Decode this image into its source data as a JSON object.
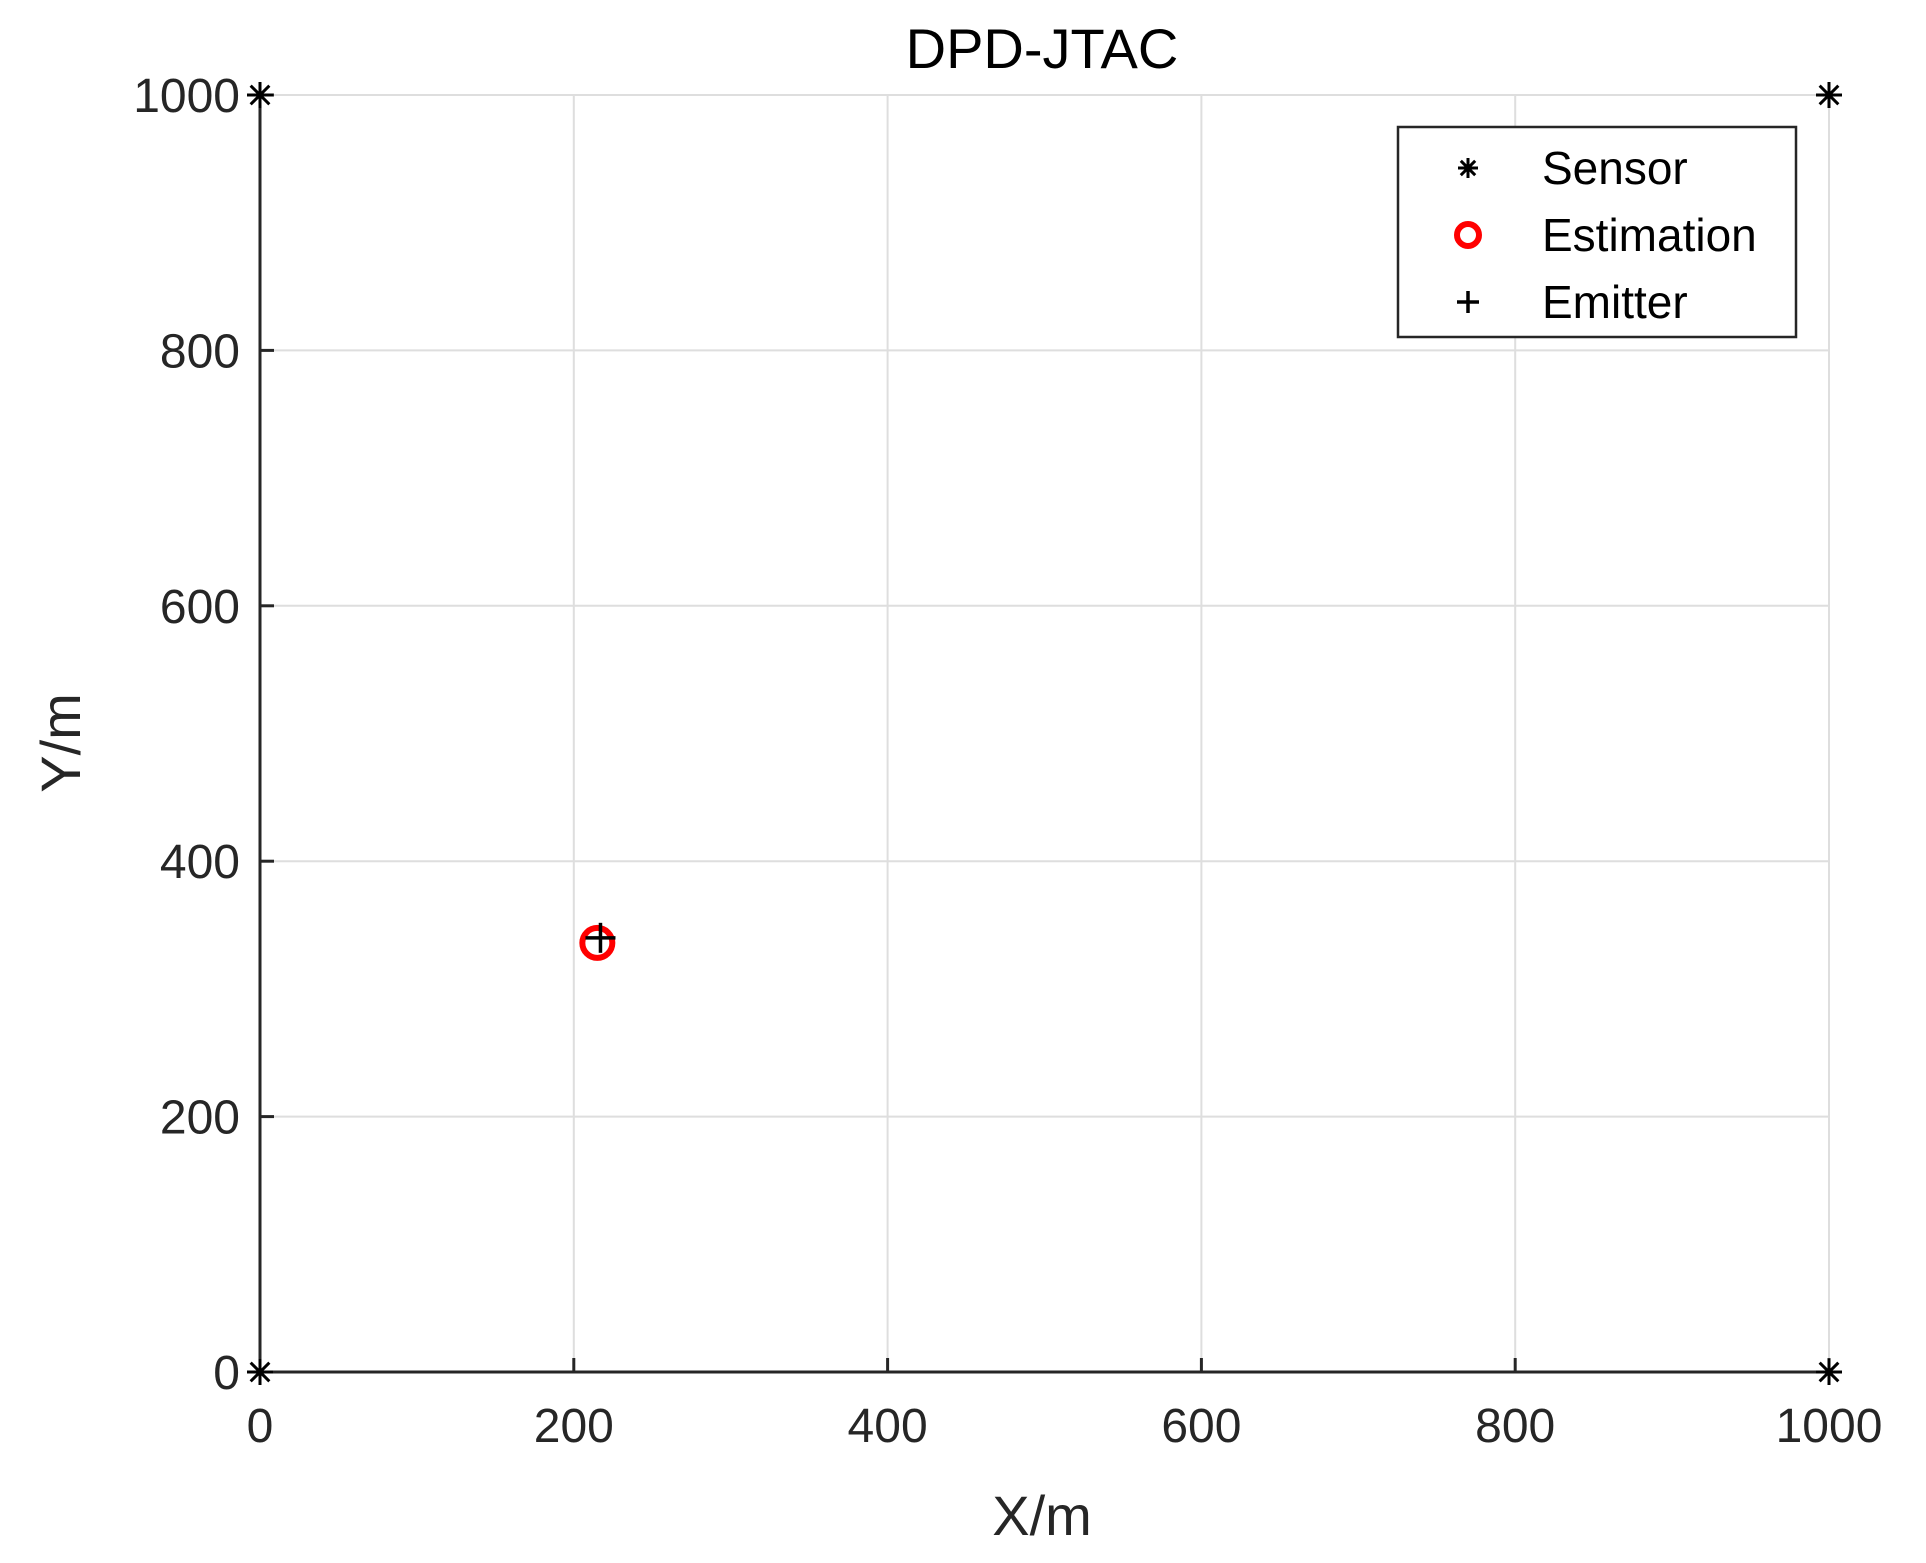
{
  "chart_data": {
    "type": "scatter",
    "title": "DPD-JTAC",
    "xlabel": "X/m",
    "ylabel": "Y/m",
    "xlim": [
      0,
      1000
    ],
    "ylim": [
      0,
      1000
    ],
    "xticks": [
      0,
      200,
      400,
      600,
      800,
      1000
    ],
    "yticks": [
      0,
      200,
      400,
      600,
      800,
      1000
    ],
    "xtick_labels": [
      "0",
      "200",
      "400",
      "600",
      "800",
      "1000"
    ],
    "ytick_labels": [
      "0",
      "200",
      "400",
      "600",
      "800",
      "1000"
    ],
    "grid": true,
    "legend_position": "top-right",
    "series": [
      {
        "name": "Sensor",
        "marker": "asterisk",
        "color": "#000000",
        "x": [
          0,
          1000,
          0,
          1000
        ],
        "y": [
          0,
          0,
          1000,
          1000
        ]
      },
      {
        "name": "Estimation",
        "marker": "circle",
        "color": "#ff0000",
        "x": [
          215
        ],
        "y": [
          336
        ]
      },
      {
        "name": "Emitter",
        "marker": "plus",
        "color": "#000000",
        "x": [
          217
        ],
        "y": [
          340
        ]
      }
    ]
  }
}
